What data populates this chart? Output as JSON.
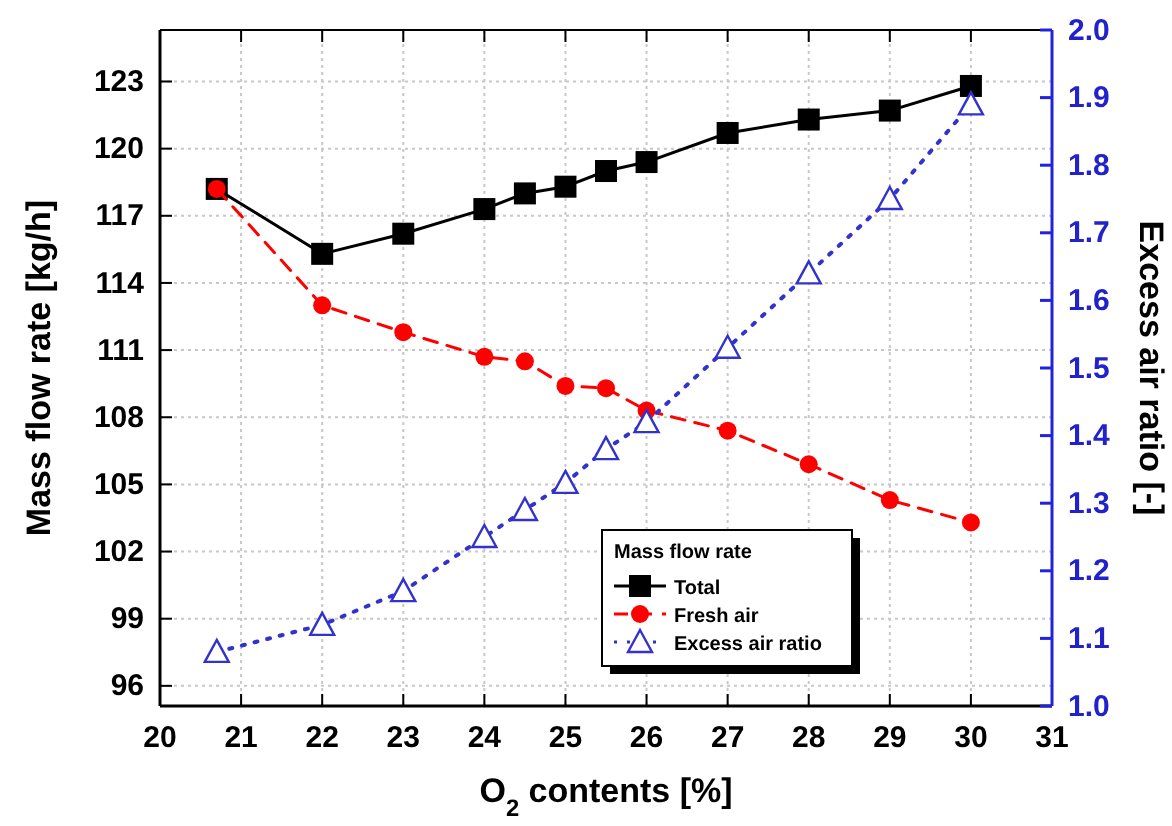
{
  "chart_data": {
    "type": "line",
    "xlabel": "O$_{2}$ contents [%]",
    "ylabel": "Mass flow rate [kg/h]",
    "y2label": "Excess air ratio [-]",
    "legend_title": "Mass flow rate",
    "x": [
      20.7,
      22,
      23,
      24,
      24.5,
      25,
      25.5,
      26,
      27,
      28,
      29,
      30
    ],
    "series": [
      {
        "name": "Total",
        "color": "#000000",
        "marker": "square",
        "line_style": "solid",
        "values": [
          118.2,
          115.3,
          116.2,
          117.3,
          118.0,
          118.3,
          119.0,
          119.4,
          120.7,
          121.3,
          121.7,
          122.8
        ]
      },
      {
        "name": "Fresh air",
        "color": "#ff0000",
        "marker": "circle",
        "line_style": "dashed",
        "values": [
          118.2,
          113.0,
          111.8,
          110.7,
          110.5,
          109.4,
          109.3,
          108.3,
          107.4,
          105.9,
          104.3,
          103.3
        ]
      },
      {
        "name": "Excess air ratio",
        "color": "#3333cc",
        "marker": "triangle",
        "line_style": "dotted",
        "axis": "y2",
        "values": [
          1.08,
          1.12,
          1.17,
          1.25,
          1.29,
          1.33,
          1.38,
          1.42,
          1.53,
          1.64,
          1.75,
          1.89
        ]
      }
    ],
    "xlim": [
      20,
      31
    ],
    "xticks": [
      20,
      21,
      22,
      23,
      24,
      25,
      26,
      27,
      28,
      29,
      30,
      31
    ],
    "ylim": [
      95.1,
      125.3
    ],
    "yticks": [
      96,
      99,
      102,
      105,
      108,
      111,
      114,
      117,
      120,
      123
    ],
    "y2lim": [
      1.0,
      2.0
    ],
    "y2ticks": [
      {
        "value": 1.0,
        "label": "1.0"
      },
      1.1,
      1.2,
      1.3,
      1.4,
      1.5,
      1.6,
      1.7,
      1.8,
      1.9,
      {
        "value": 2.0,
        "label": "2.0"
      }
    ],
    "grid": true,
    "legend": "bottom right"
  }
}
